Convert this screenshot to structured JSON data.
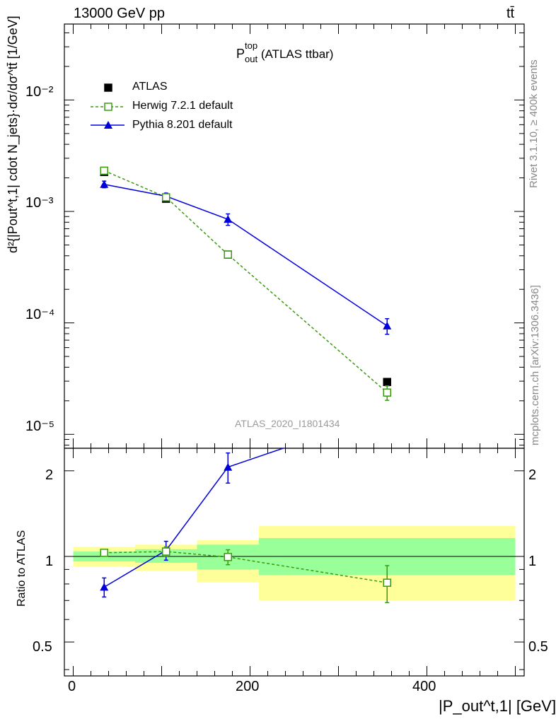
{
  "header": {
    "energy": "13000 GeV pp",
    "process": "tt̄"
  },
  "plot_title": {
    "base": "P",
    "sup": "top",
    "sub": "out",
    "suffix": " (ATLAS ttbar)"
  },
  "side_labels": {
    "rivet": "Rivet 3.1.10, ≥ 400k events",
    "mcplots": "mcplots.cern.ch [arXiv:1306.3436]"
  },
  "watermark": "ATLAS_2020_I1801434",
  "y_axis_main": {
    "label": "d²{|Pout^t,1| cdot N_jets}·dσ/dσ^tt̄ [1/GeV]",
    "tick_labels": [
      "10⁻⁵",
      "10⁻⁴",
      "10⁻³",
      "10⁻²"
    ]
  },
  "y_axis_ratio": {
    "label": "Ratio to ATLAS",
    "tick_labels": [
      "0.5",
      "1",
      "2"
    ]
  },
  "x_axis": {
    "label": "|P_out^t,1| [GeV]",
    "tick_labels": [
      "0",
      "200",
      "400"
    ]
  },
  "legend": [
    {
      "name": "ATLAS",
      "color": "#000000",
      "marker": "filled-square"
    },
    {
      "name": "Herwig 7.2.1 default",
      "color": "#3a9a10",
      "marker": "open-square",
      "dashed": true
    },
    {
      "name": "Pythia 8.201 default",
      "color": "#0000dd",
      "marker": "filled-triangle"
    }
  ],
  "chart_data": {
    "type": "scatter",
    "xlim": [
      -10,
      510
    ],
    "ylim_main": [
      7.5e-06,
      0.048
    ],
    "ylog_main": true,
    "ylim_ratio": [
      0.38,
      2.4
    ],
    "ylog_ratio": true,
    "bins": [
      [
        0,
        70
      ],
      [
        70,
        140
      ],
      [
        140,
        210
      ],
      [
        210,
        500
      ]
    ],
    "x": [
      35,
      105,
      175,
      355
    ],
    "series": [
      {
        "name": "ATLAS",
        "values": [
          0.00226,
          0.0013,
          0.00041,
          2.95e-05
        ],
        "errors": [
          0,
          0,
          0,
          0
        ]
      },
      {
        "name": "Herwig 7.2.1 default",
        "values": [
          0.00232,
          0.00134,
          0.00041,
          2.37e-05
        ],
        "errors": [
          0.0001,
          6e-05,
          2e-05,
          3.5e-06
        ]
      },
      {
        "name": "Pythia 8.201 default",
        "values": [
          0.00175,
          0.00137,
          0.00085,
          9.4e-05
        ],
        "errors": [
          0.00012,
          9e-05,
          0.0001,
          1.5e-05
        ]
      }
    ],
    "ratio": {
      "herwig": {
        "values": [
          1.03,
          1.04,
          0.995,
          0.808
        ],
        "errors": [
          0.015,
          0.04,
          0.06,
          0.12
        ]
      },
      "pythia": {
        "values": [
          0.78,
          1.05,
          2.06,
          3.2
        ],
        "errors": [
          0.06,
          0.08,
          0.25,
          0
        ]
      },
      "band_stat": [
        [
          0.96,
          1.04
        ],
        [
          0.95,
          1.06
        ],
        [
          0.9,
          1.1
        ],
        [
          0.86,
          1.16
        ]
      ],
      "band_total": [
        [
          0.92,
          1.08
        ],
        [
          0.89,
          1.1
        ],
        [
          0.81,
          1.14
        ],
        [
          0.7,
          1.28
        ]
      ]
    }
  }
}
